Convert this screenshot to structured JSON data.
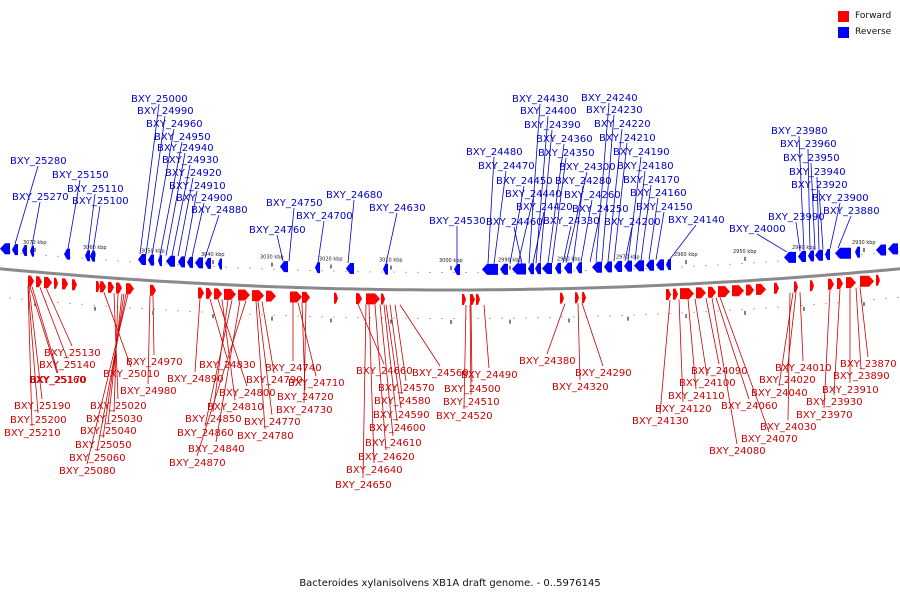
{
  "legend": [
    {
      "label": "Forward",
      "color": "#ff0000"
    },
    {
      "label": "Reverse",
      "color": "#0000ff"
    }
  ],
  "caption": "Bacteroides xylanisolvens XB1A draft genome. - 0..5976145",
  "ticks": [
    "3070 kbp",
    "3060 kbp",
    "3050 kbp",
    "3040 kbp",
    "3030 kbp",
    "3020 kbp",
    "3010 kbp",
    "3000 kbp",
    "2990 kbp",
    "2980 kbp",
    "2970 kbp",
    "2960 kbp",
    "2950 kbp",
    "2940 kbp",
    "2930 kbp"
  ],
  "reverse_labels": [
    "BXY_25280",
    "BXY_25270",
    "BXY_25150",
    "BXY_25110",
    "BXY_25100",
    "BXY_25000",
    "BXY_24990",
    "BXY_24960",
    "BXY_24950",
    "BXY_24940",
    "BXY_24930",
    "BXY_24920",
    "BXY_24910",
    "BXY_24900",
    "BXY_24880",
    "BXY_24760",
    "BXY_24750",
    "BXY_24700",
    "BXY_24680",
    "BXY_24630",
    "BXY_24530",
    "BXY_24480",
    "BXY_24470",
    "BXY_24460",
    "BXY_24450",
    "BXY_24440",
    "BXY_24430",
    "BXY_24420",
    "BXY_24400",
    "BXY_24390",
    "BXY_24360",
    "BXY_24350",
    "BXY_24330",
    "BXY_24300",
    "BXY_24280",
    "BXY_24260",
    "BXY_24250",
    "BXY_24240",
    "BXY_24230",
    "BXY_24220",
    "BXY_24210",
    "BXY_24200",
    "BXY_24190",
    "BXY_24180",
    "BXY_24170",
    "BXY_24160",
    "BXY_24150",
    "BXY_24140",
    "BXY_24000",
    "BXY_23990",
    "BXY_23980",
    "BXY_23960",
    "BXY_23950",
    "BXY_23940",
    "BXY_23920",
    "BXY_23900",
    "BXY_23880"
  ],
  "forward_labels": [
    "BXY_25130",
    "BXY_25140",
    "BXY_25170",
    "BXY_25160",
    "BXY_25190",
    "BXY_25200",
    "BXY_25210",
    "BXY_25010",
    "BXY_25020",
    "BXY_25030",
    "BXY_25040",
    "BXY_25050",
    "BXY_25060",
    "BXY_25080",
    "BXY_24970",
    "BXY_24980",
    "BXY_24890",
    "BXY_24830",
    "BXY_24800",
    "BXY_24810",
    "BXY_24850",
    "BXY_24860",
    "BXY_24840",
    "BXY_24870",
    "BXY_24790",
    "BXY_24770",
    "BXY_24780",
    "BXY_24740",
    "BXY_24710",
    "BXY_24720",
    "BXY_24730",
    "BXY_24660",
    "BXY_24560",
    "BXY_24570",
    "BXY_24580",
    "BXY_24590",
    "BXY_24600",
    "BXY_24610",
    "BXY_24620",
    "BXY_24640",
    "BXY_24650",
    "BXY_24490",
    "BXY_24500",
    "BXY_24510",
    "BXY_24520",
    "BXY_24380",
    "BXY_24290",
    "BXY_24320",
    "BXY_24090",
    "BXY_24100",
    "BXY_24110",
    "BXY_24120",
    "BXY_24130",
    "BXY_24060",
    "BXY_24070",
    "BXY_24080",
    "BXY_24010",
    "BXY_24020",
    "BXY_24040",
    "BXY_24030",
    "BXY_23870",
    "BXY_23890",
    "BXY_23910",
    "BXY_23930",
    "BXY_23970"
  ]
}
